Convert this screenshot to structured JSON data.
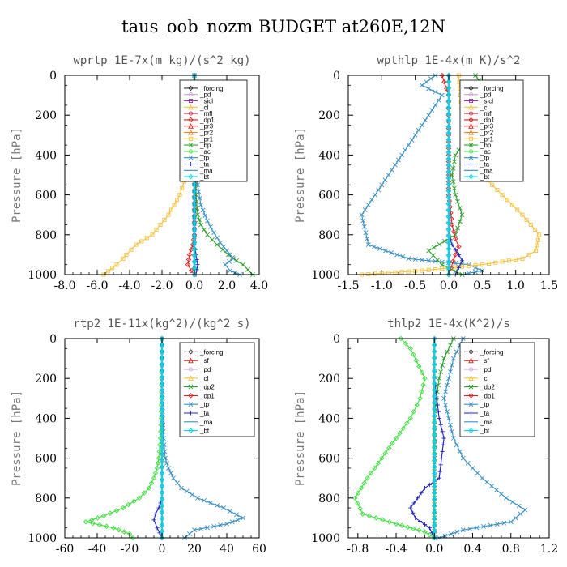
{
  "figure": {
    "title": "taus_oob_nozm  BUDGET at260E,12N"
  },
  "chart_data": [
    {
      "type": "line",
      "title": "wprtp  1E-7x(m kg)/(s^2 kg)",
      "ylabel": "Pressure [hPa]",
      "xlim": [
        -8,
        4
      ],
      "ylim": [
        1000,
        0
      ],
      "xticks": [
        "-8.0",
        "-6.0",
        "-4.0",
        "-2.0",
        "0.0",
        "2.0",
        "4.0"
      ],
      "yticks": [
        "0",
        "200",
        "400",
        "600",
        "800",
        "1000"
      ],
      "legend": {
        "placement": "top-right",
        "entries": [
          "_forcing",
          "_pd",
          "_sicl",
          "_cl",
          "_mfl",
          "_dp1",
          "_pr3",
          "_pr2",
          "_pr1",
          "_bp",
          "_ac",
          "_tp",
          "_ta",
          "_ma",
          "_bt"
        ]
      },
      "series": [
        {
          "name": "_pr1",
          "color": "#f5c242",
          "x": [
            0,
            0,
            -0.1,
            -0.2,
            -0.3,
            -0.5,
            -0.9,
            -1.6,
            -2.6,
            -3.6,
            -4.2,
            -4.4,
            -4.8,
            -5.6
          ],
          "y": [
            0,
            100,
            200,
            300,
            400,
            500,
            600,
            700,
            800,
            850,
            900,
            920,
            950,
            1000
          ]
        },
        {
          "name": "_bp",
          "color": "#2ca02c",
          "x": [
            0,
            0,
            0,
            0.1,
            0.2,
            0.4,
            0.8,
            1.4,
            2.1,
            2.6,
            3.0,
            3.6
          ],
          "y": [
            0,
            200,
            400,
            600,
            700,
            750,
            800,
            850,
            900,
            930,
            950,
            1000
          ]
        },
        {
          "name": "_tp",
          "color": "#3a8fc0",
          "x": [
            0,
            0,
            0.1,
            0.2,
            0.4,
            0.8,
            1.2,
            1.6,
            2.0,
            2.4,
            1.9,
            2.2,
            2.8
          ],
          "y": [
            0,
            300,
            450,
            550,
            650,
            730,
            790,
            840,
            880,
            920,
            950,
            980,
            1000
          ]
        },
        {
          "name": "_dp1",
          "color": "#dd2222",
          "x": [
            0,
            0,
            -0.1,
            -0.3,
            -0.4,
            -0.2,
            0
          ],
          "y": [
            0,
            800,
            850,
            900,
            950,
            980,
            1000
          ]
        },
        {
          "name": "_ta",
          "color": "#2222bb",
          "x": [
            0,
            0,
            0.1,
            0.2,
            0.1
          ],
          "y": [
            0,
            850,
            900,
            950,
            1000
          ]
        },
        {
          "name": "_forcing",
          "color": "#333333",
          "x": [
            0,
            0
          ],
          "y": [
            0,
            1000
          ]
        },
        {
          "name": "_pd",
          "color": "#9b30b0",
          "x": [
            0,
            0
          ],
          "y": [
            0,
            1000
          ]
        },
        {
          "name": "_bt",
          "color": "#00d5e5",
          "x": [
            0,
            0
          ],
          "y": [
            0,
            1000
          ]
        }
      ]
    },
    {
      "type": "line",
      "title": "wpthlp  1E-4x(m K)/s^2",
      "ylabel": "Pressure [hPa]",
      "xlim": [
        -1.5,
        1.5
      ],
      "ylim": [
        1000,
        0
      ],
      "xticks": [
        "-1.5",
        "-1.0",
        "-0.5",
        "0.0",
        "0.5",
        "1.0",
        "1.5"
      ],
      "yticks": [
        "0",
        "200",
        "400",
        "600",
        "800",
        "1000"
      ],
      "legend": {
        "placement": "top-right",
        "entries": [
          "_forcing",
          "_pd",
          "_sicl",
          "_cl",
          "_mfl",
          "_dp1",
          "_pr3",
          "_pr2",
          "_pr1",
          "_bp",
          "_ac",
          "_tp",
          "_ta",
          "_ma",
          "_bt"
        ]
      },
      "series": [
        {
          "name": "_tp",
          "color": "#3a8fc0",
          "x": [
            -0.2,
            -0.4,
            -0.1,
            -0.3,
            -0.5,
            -0.7,
            -0.9,
            -1.1,
            -1.3,
            -1.2,
            -0.6,
            0.3,
            0.5,
            0.2
          ],
          "y": [
            0,
            50,
            100,
            200,
            300,
            400,
            500,
            600,
            700,
            850,
            920,
            950,
            980,
            1000
          ]
        },
        {
          "name": "_bp",
          "color": "#2ca02c",
          "x": [
            0.4,
            0.6,
            0.5,
            0.3,
            0.1,
            0.05,
            0.1,
            0.2,
            0.1,
            -0.3,
            -0.1,
            0.2
          ],
          "y": [
            0,
            100,
            200,
            300,
            400,
            500,
            600,
            700,
            800,
            880,
            950,
            1000
          ]
        },
        {
          "name": "_pr1",
          "color": "#f5c242",
          "x": [
            0.15,
            0.2,
            0.25,
            0.35,
            0.5,
            0.8,
            1.1,
            1.35,
            1.3,
            1.1,
            0.5,
            -0.4,
            -1.3
          ],
          "y": [
            0,
            200,
            300,
            400,
            500,
            600,
            700,
            800,
            880,
            920,
            950,
            980,
            1000
          ]
        },
        {
          "name": "_dp1",
          "color": "#dd2222",
          "x": [
            -0.1,
            0,
            0,
            0.05,
            0.1,
            0.15,
            0.1,
            0
          ],
          "y": [
            0,
            100,
            600,
            750,
            820,
            860,
            900,
            1000
          ]
        },
        {
          "name": "_ta",
          "color": "#2222bb",
          "x": [
            0,
            0,
            0.05,
            0.15,
            0.2,
            0.1
          ],
          "y": [
            0,
            800,
            850,
            900,
            930,
            1000
          ]
        },
        {
          "name": "_forcing",
          "color": "#333333",
          "x": [
            0,
            0
          ],
          "y": [
            0,
            1000
          ]
        },
        {
          "name": "_pd",
          "color": "#c9a0dc",
          "x": [
            0,
            0
          ],
          "y": [
            0,
            1000
          ]
        },
        {
          "name": "_bt",
          "color": "#00d5e5",
          "x": [
            0,
            0
          ],
          "y": [
            0,
            1000
          ]
        }
      ]
    },
    {
      "type": "line",
      "title": "rtp2  1E-11x(kg^2)/(kg^2 s)",
      "ylabel": "Pressure [hPa]",
      "xlim": [
        -60,
        60
      ],
      "ylim": [
        1000,
        0
      ],
      "xticks": [
        "-60",
        "-40",
        "-20",
        "0",
        "20",
        "40",
        "60"
      ],
      "yticks": [
        "0",
        "200",
        "400",
        "600",
        "800",
        "1000"
      ],
      "legend": {
        "placement": "top-right",
        "entries": [
          "_forcing",
          "_sf",
          "_pd",
          "_cl",
          "_dp2",
          "_dp1",
          "_tp",
          "_ta",
          "_ma",
          "_bt"
        ]
      },
      "series": [
        {
          "name": "_dp1",
          "color": "#44dd44",
          "x": [
            0,
            -0.5,
            -1,
            -2,
            -3,
            -5,
            -8,
            -14,
            -24,
            -36,
            -47,
            -30,
            -20,
            -18
          ],
          "y": [
            0,
            400,
            500,
            600,
            650,
            700,
            750,
            800,
            850,
            890,
            920,
            950,
            980,
            1000
          ]
        },
        {
          "name": "_tp",
          "color": "#3a8fc0",
          "x": [
            0,
            0.5,
            1,
            2,
            4,
            7,
            12,
            22,
            38,
            50,
            40,
            20,
            14
          ],
          "y": [
            0,
            400,
            500,
            600,
            650,
            700,
            750,
            800,
            850,
            900,
            930,
            960,
            1000
          ]
        },
        {
          "name": "_ta",
          "color": "#2222bb",
          "x": [
            0,
            0,
            -2,
            -4,
            -5,
            -3,
            0
          ],
          "y": [
            0,
            800,
            850,
            880,
            910,
            950,
            1000
          ]
        },
        {
          "name": "_forcing",
          "color": "#dd2222",
          "x": [
            0,
            0
          ],
          "y": [
            0,
            1000
          ]
        },
        {
          "name": "_bt",
          "color": "#00d5e5",
          "x": [
            0,
            0
          ],
          "y": [
            0,
            1000
          ]
        }
      ]
    },
    {
      "type": "line",
      "title": "thlp2  1E-4x(K^2)/s",
      "ylabel": "Pressure [hPa]",
      "xlim": [
        -0.9,
        1.2
      ],
      "ylim": [
        1000,
        0
      ],
      "xticks": [
        "-0.8",
        "-0.4",
        "0.0",
        "0.4",
        "0.8",
        "1.2"
      ],
      "yticks": [
        "0",
        "200",
        "400",
        "600",
        "800",
        "1000"
      ],
      "legend": {
        "placement": "top-right",
        "entries": [
          "_forcing",
          "_sf",
          "_pd",
          "_cl",
          "_dp2",
          "_dp1",
          "_tp",
          "_ta",
          "_ma",
          "_bt"
        ]
      },
      "series": [
        {
          "name": "_dp1",
          "color": "#44dd44",
          "x": [
            -0.35,
            -0.25,
            -0.1,
            -0.15,
            -0.25,
            -0.4,
            -0.55,
            -0.7,
            -0.83,
            -0.75,
            -0.4,
            -0.1,
            0
          ],
          "y": [
            0,
            50,
            200,
            300,
            400,
            500,
            600,
            700,
            800,
            880,
            930,
            970,
            1000
          ]
        },
        {
          "name": "_dp2",
          "color": "#2ca02c",
          "x": [
            0.2,
            0.1,
            0.05,
            0.02,
            0,
            0
          ],
          "y": [
            0,
            100,
            200,
            300,
            400,
            1000
          ]
        },
        {
          "name": "_tp",
          "color": "#3a8fc0",
          "x": [
            0.3,
            0.2,
            0.15,
            0.1,
            0.15,
            0.2,
            0.3,
            0.5,
            0.75,
            0.95,
            0.8,
            0.3,
            0.05
          ],
          "y": [
            0,
            100,
            200,
            300,
            400,
            500,
            600,
            700,
            800,
            860,
            920,
            960,
            1000
          ]
        },
        {
          "name": "_ta",
          "color": "#2222bb",
          "x": [
            0,
            0,
            0.05,
            0.1,
            0.05,
            -0.1,
            -0.25,
            -0.2,
            -0.05,
            0
          ],
          "y": [
            0,
            200,
            400,
            500,
            700,
            750,
            850,
            900,
            950,
            1000
          ]
        },
        {
          "name": "_forcing",
          "color": "#dd2222",
          "x": [
            0,
            0
          ],
          "y": [
            0,
            1000
          ]
        },
        {
          "name": "_bt",
          "color": "#00d5e5",
          "x": [
            0,
            0
          ],
          "y": [
            0,
            1000
          ]
        }
      ]
    }
  ],
  "legend_styles": {
    "_forcing": {
      "color": "#333333",
      "marker": "diamond"
    },
    "_sf": {
      "color": "#dd2222",
      "marker": "triangle"
    },
    "_pd": {
      "color": "#c9a0dc",
      "marker": "circle"
    },
    "_sicl": {
      "color": "#9b30b0",
      "marker": "square"
    },
    "_cl": {
      "color": "#f5c242",
      "marker": "triangle"
    },
    "_mfl": {
      "color": "#c0304a",
      "marker": "circle"
    },
    "_dp2": {
      "color": "#2ca02c",
      "marker": "x"
    },
    "_dp1": {
      "color": "#dd2222",
      "marker": "diamond"
    },
    "_pr3": {
      "color": "#dd2222",
      "marker": "triangle"
    },
    "_pr2": {
      "color": "#f08030",
      "marker": "triangle"
    },
    "_pr1": {
      "color": "#f5c242",
      "marker": "square"
    },
    "_bp": {
      "color": "#2ca02c",
      "marker": "x"
    },
    "_ac": {
      "color": "#44dd44",
      "marker": "circle"
    },
    "_tp": {
      "color": "#3a8fc0",
      "marker": "x"
    },
    "_ta": {
      "color": "#2222bb",
      "marker": "plus"
    },
    "_ma": {
      "color": "#3a8fc0",
      "marker": "none"
    },
    "_bt": {
      "color": "#00d5e5",
      "marker": "diamond"
    }
  }
}
